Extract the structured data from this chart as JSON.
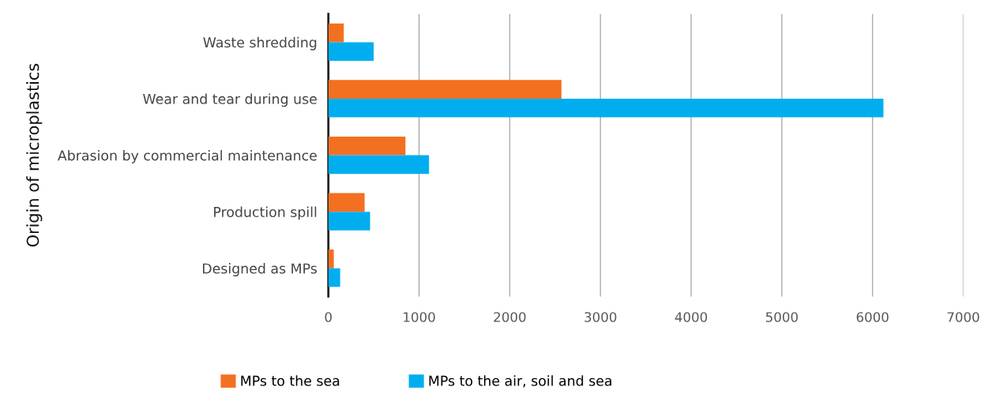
{
  "chart_data": {
    "type": "bar",
    "orientation": "horizontal",
    "ylabel": "Origin of microplastics",
    "categories": [
      "Waste shredding",
      "Wear and tear during use",
      "Abrasion by commercial maintenance",
      "Production spill",
      "Designed as MPs"
    ],
    "series": [
      {
        "name": "MPs to the sea",
        "color": "#f37021",
        "values": [
          170,
          2570,
          850,
          400,
          60
        ]
      },
      {
        "name": "MPs to the air, soil and sea",
        "color": "#00aeef",
        "values": [
          500,
          6120,
          1110,
          460,
          130
        ]
      }
    ],
    "xlim": [
      0,
      7000
    ],
    "xticks": [
      0,
      1000,
      2000,
      3000,
      4000,
      5000,
      6000,
      7000
    ],
    "grid": "x",
    "legend": "bottom"
  }
}
